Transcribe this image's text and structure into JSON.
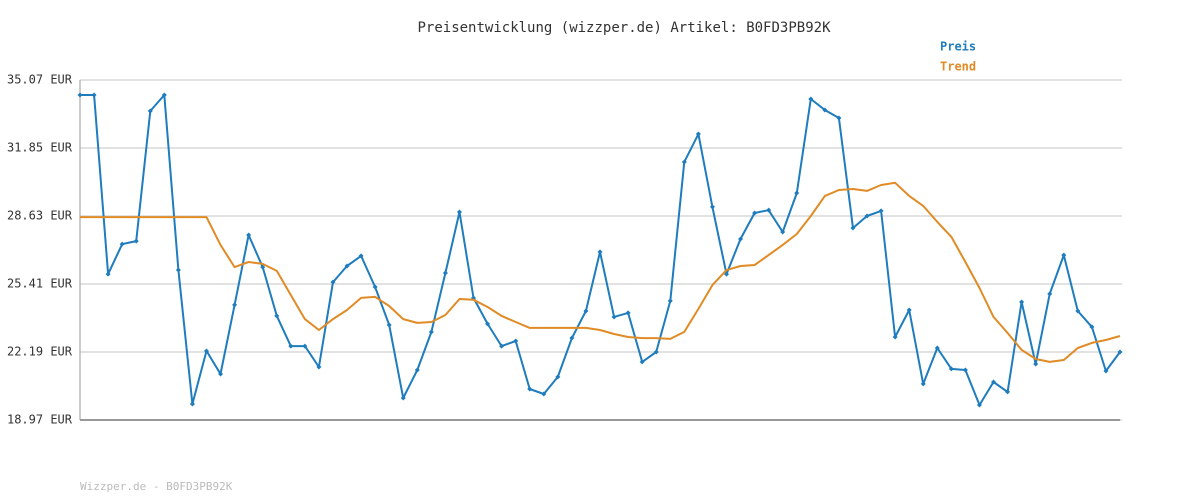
{
  "chart_data": {
    "type": "line",
    "title": "Preisentwicklung (wizzper.de) Artikel: B0FD3PB92K",
    "footer": "Wizzper.de - B0FD3PB92K",
    "ylim": [
      18.97,
      35.07
    ],
    "yticks": [
      {
        "value": 18.97,
        "label": "18.97 EUR"
      },
      {
        "value": 22.19,
        "label": "22.19 EUR"
      },
      {
        "value": 25.41,
        "label": "25.41 EUR"
      },
      {
        "value": 28.63,
        "label": "28.63 EUR"
      },
      {
        "value": 31.85,
        "label": "31.85 EUR"
      },
      {
        "value": 35.07,
        "label": "35.07 EUR"
      }
    ],
    "grid": true,
    "legend": "top-right",
    "series": [
      {
        "name": "Preis",
        "color": "#1f7cbd",
        "markers": true,
        "values": [
          34.36,
          34.36,
          25.88,
          27.3,
          27.44,
          33.6,
          34.36,
          26.07,
          19.73,
          22.24,
          21.15,
          24.42,
          27.73,
          26.21,
          23.9,
          22.47,
          22.47,
          21.48,
          25.5,
          26.26,
          26.74,
          25.27,
          23.47,
          20.01,
          21.34,
          23.14,
          25.93,
          28.82,
          24.75,
          23.52,
          22.47,
          22.71,
          20.44,
          20.2,
          21.01,
          22.85,
          24.13,
          26.93,
          23.85,
          24.04,
          21.72,
          22.19,
          24.61,
          31.19,
          32.51,
          29.06,
          25.88,
          27.54,
          28.77,
          28.91,
          27.87,
          29.72,
          34.17,
          33.65,
          33.27,
          28.06,
          28.63,
          28.87,
          22.9,
          24.18,
          20.68,
          22.38,
          21.39,
          21.34,
          19.68,
          20.77,
          20.3,
          24.56,
          21.62,
          24.94,
          26.78,
          24.13,
          23.38,
          21.29,
          22.19
        ]
      },
      {
        "name": "Trend",
        "color": "#e08b26",
        "markers": false,
        "values": [
          28.58,
          28.58,
          28.58,
          28.58,
          28.58,
          28.58,
          28.58,
          28.58,
          28.58,
          28.58,
          27.26,
          26.21,
          26.45,
          26.36,
          26.03,
          24.89,
          23.75,
          23.23,
          23.75,
          24.18,
          24.75,
          24.8,
          24.37,
          23.75,
          23.57,
          23.61,
          23.94,
          24.7,
          24.66,
          24.32,
          23.9,
          23.61,
          23.33,
          23.33,
          23.33,
          23.33,
          23.33,
          23.23,
          23.04,
          22.9,
          22.85,
          22.85,
          22.81,
          23.14,
          24.23,
          25.36,
          26.07,
          26.26,
          26.31,
          26.78,
          27.26,
          27.78,
          28.63,
          29.58,
          29.86,
          29.91,
          29.82,
          30.1,
          30.2,
          29.58,
          29.11,
          28.35,
          27.64,
          26.45,
          25.22,
          23.85,
          23.09,
          22.29,
          21.86,
          21.72,
          21.81,
          22.38,
          22.62,
          22.76,
          22.95
        ]
      }
    ]
  }
}
